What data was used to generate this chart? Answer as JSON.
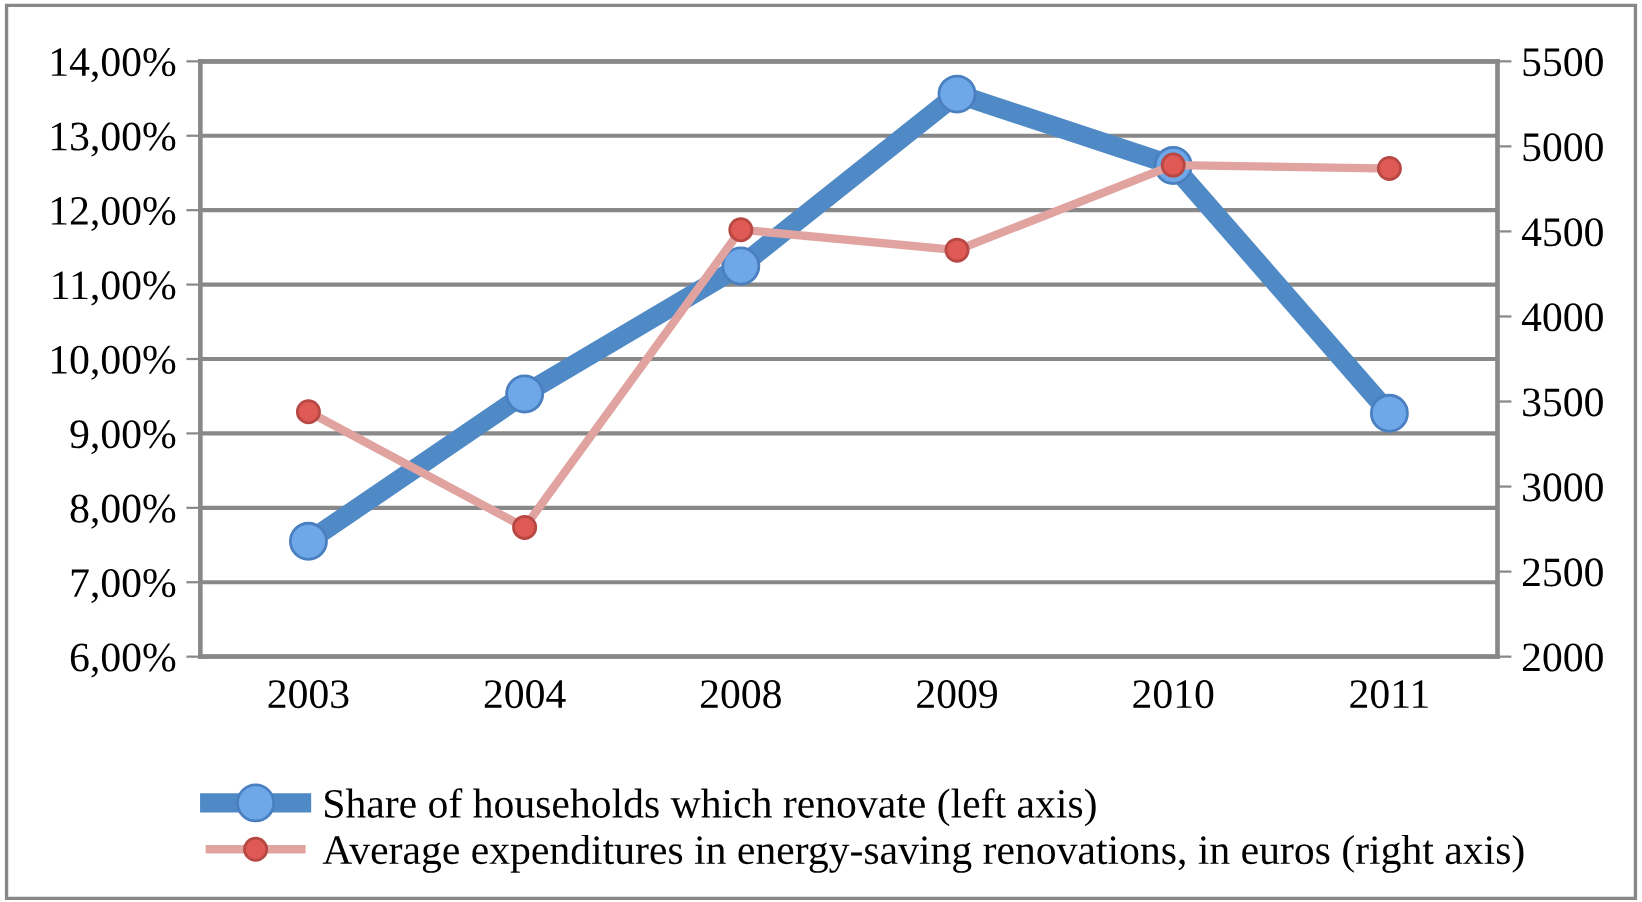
{
  "chart_data": {
    "type": "line",
    "categories": [
      "2003",
      "2004",
      "2008",
      "2009",
      "2010",
      "2011"
    ],
    "series": [
      {
        "name": "Share of households which renovate (left axis)",
        "color": "#4f8ac6",
        "values": [
          7.55,
          9.53,
          11.25,
          13.56,
          12.6,
          9.27
        ],
        "axis": "y"
      },
      {
        "name": "Average expenditures in energy-saving renovations, in euros (right axis)",
        "color": "#e0a3a0",
        "values": [
          3440,
          2760,
          4510,
          4390,
          4890,
          4870
        ],
        "axis": "y2"
      }
    ],
    "ylim": [
      6,
      14
    ],
    "yticks": [
      {
        "value": 6,
        "label": "6,00%"
      },
      {
        "value": 7,
        "label": "7,00%"
      },
      {
        "value": 8,
        "label": "8,00%"
      },
      {
        "value": 9,
        "label": "9,00%"
      },
      {
        "value": 10,
        "label": "10,00%"
      },
      {
        "value": 11,
        "label": "11,00%"
      },
      {
        "value": 12,
        "label": "12,00%"
      },
      {
        "value": 13,
        "label": "13,00%"
      },
      {
        "value": 14,
        "label": "14,00%"
      }
    ],
    "y2lim": [
      2000,
      5500
    ],
    "y2ticks": [
      2000,
      2500,
      3000,
      3500,
      4000,
      4500,
      5000,
      5500
    ],
    "grid": "y",
    "legend": "bottom",
    "marker": "circle",
    "line_style": "solid"
  }
}
